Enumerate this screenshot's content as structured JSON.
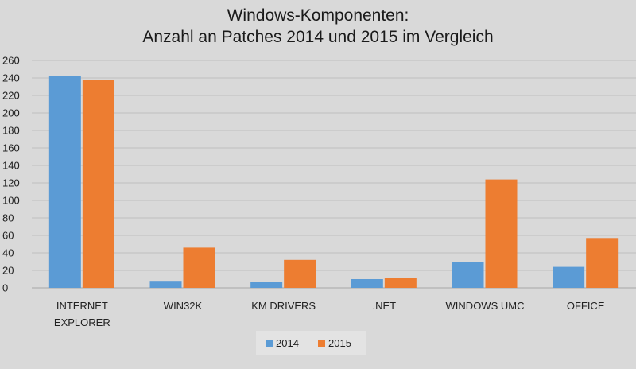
{
  "chart_data": {
    "type": "bar",
    "title_lines": [
      "Windows-Komponenten:",
      "Anzahl an Patches 2014 und 2015 im Vergleich"
    ],
    "categories": [
      [
        "INTERNET",
        "EXPLORER"
      ],
      [
        "WIN32K"
      ],
      [
        "KM DRIVERS"
      ],
      [
        ".NET"
      ],
      [
        "WINDOWS UMC"
      ],
      [
        "OFFICE"
      ]
    ],
    "series": [
      {
        "name": "2014",
        "color": "#5b9bd5",
        "values": [
          242,
          8,
          7,
          10,
          30,
          24
        ]
      },
      {
        "name": "2015",
        "color": "#ed7d31",
        "values": [
          238,
          46,
          32,
          11,
          124,
          57
        ]
      }
    ],
    "ylim": [
      0,
      260
    ],
    "yticks": [
      0,
      20,
      40,
      60,
      80,
      100,
      120,
      140,
      160,
      180,
      200,
      220,
      240,
      260
    ],
    "grid": true,
    "legend": "bottom"
  }
}
